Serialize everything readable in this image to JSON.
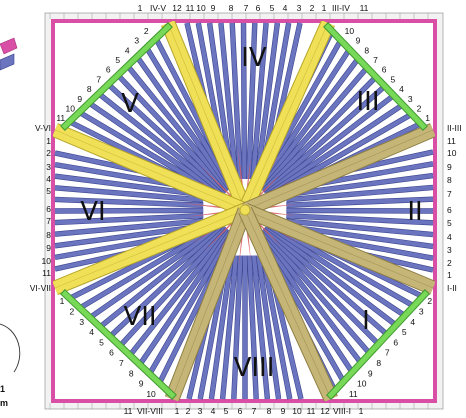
{
  "colors": {
    "frame": "#d94fa6",
    "frame_dark": "#a8327c",
    "diagonal": "#78d858",
    "diagonal_dark": "#3f9a2f",
    "bar_fill": "#6a74bf",
    "bar_stroke": "#3c458f",
    "spoke_yellow": "#f0e058",
    "spoke_yellow_edge": "#b6a528",
    "spoke_khaki": "#c5b577",
    "spoke_khaki_edge": "#8f7f43",
    "red_ray": "#d9585a",
    "background": "#ffffff"
  },
  "sectors": [
    "IV",
    "III",
    "II",
    "I",
    "VIII",
    "VII",
    "VI",
    "V"
  ],
  "top_labels": [
    "1",
    "IV-V",
    "12",
    "11",
    "10",
    "9",
    "8",
    "7",
    "6",
    "5",
    "4",
    "3",
    "2",
    "1",
    "III-IV",
    "11"
  ],
  "bottom_labels": [
    "11",
    "VII-VIII",
    "1",
    "2",
    "3",
    "4",
    "5",
    "6",
    "7",
    "8",
    "9",
    "10",
    "11",
    "12",
    "VIII-I",
    "1"
  ],
  "left_labels": [
    "V-VI",
    "1",
    "2",
    "3",
    "4",
    "5",
    "6",
    "7",
    "8",
    "9",
    "10",
    "11",
    "VI-VII"
  ],
  "right_labels": [
    "II-III",
    "11",
    "10",
    "9",
    "8",
    "7",
    "6",
    "5",
    "4",
    "3",
    "2",
    "1",
    "I-II"
  ],
  "diag_labels": {
    "top_left": [
      "11",
      "10",
      "9",
      "8",
      "7",
      "6",
      "5",
      "4",
      "3",
      "2"
    ],
    "top_right": [
      "10",
      "9",
      "8",
      "7",
      "6",
      "5",
      "4",
      "3",
      "2",
      "1"
    ],
    "bottom_left": [
      "1",
      "2",
      "3",
      "4",
      "5",
      "6",
      "7",
      "8",
      "9",
      "10"
    ],
    "bottom_right": [
      "11",
      "10",
      "9",
      "8",
      "7",
      "6",
      "5",
      "4",
      "3",
      "2"
    ]
  },
  "edge_label_partial": [
    "1",
    "m"
  ]
}
